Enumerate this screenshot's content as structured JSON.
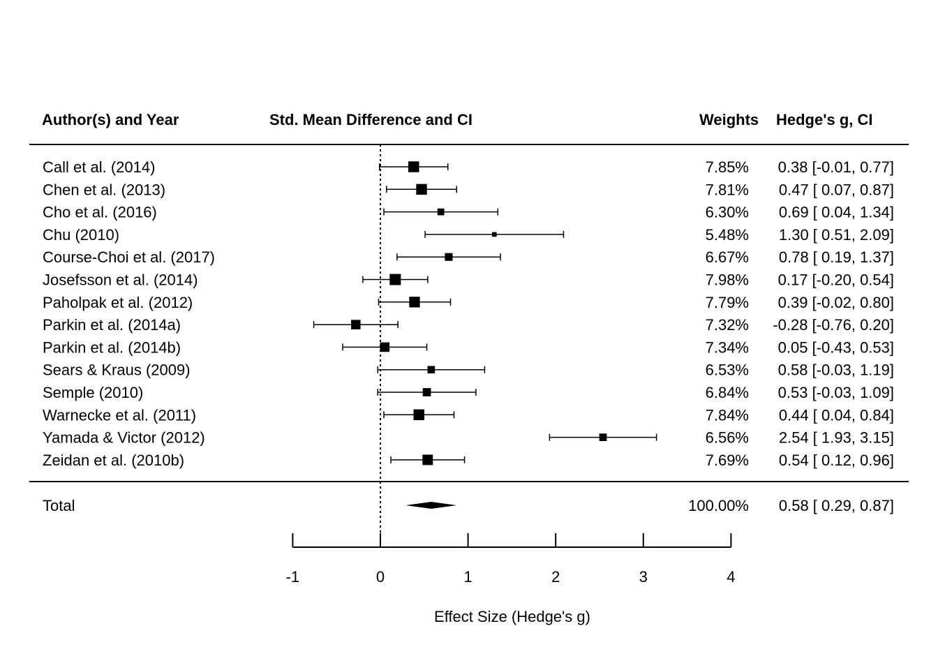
{
  "headers": {
    "study": "Author(s) and Year",
    "plot": "Std. Mean Difference and CI",
    "weights": "Weights",
    "effect": "Hedge's g, CI"
  },
  "chart_data": {
    "type": "forest",
    "xlabel": "Effect Size (Hedge's g)",
    "xlim": [
      -1,
      4
    ],
    "xticks": [
      -1,
      0,
      1,
      2,
      3,
      4
    ],
    "xtick_labels": [
      "-1",
      "0",
      "1",
      "2",
      "3",
      "4"
    ],
    "reference_line": 0,
    "studies": [
      {
        "label": "Call et al. (2014)",
        "est": 0.38,
        "lo": -0.01,
        "hi": 0.77,
        "weight": 7.85,
        "weight_text": "7.85%",
        "ci_text": "0.38 [-0.01, 0.77]"
      },
      {
        "label": "Chen et al. (2013)",
        "est": 0.47,
        "lo": 0.07,
        "hi": 0.87,
        "weight": 7.81,
        "weight_text": "7.81%",
        "ci_text": "0.47 [ 0.07, 0.87]"
      },
      {
        "label": "Cho et al. (2016)",
        "est": 0.69,
        "lo": 0.04,
        "hi": 1.34,
        "weight": 6.3,
        "weight_text": "6.30%",
        "ci_text": "0.69 [ 0.04, 1.34]"
      },
      {
        "label": "Chu (2010)",
        "est": 1.3,
        "lo": 0.51,
        "hi": 2.09,
        "weight": 5.48,
        "weight_text": "5.48%",
        "ci_text": "1.30 [ 0.51, 2.09]"
      },
      {
        "label": "Course-Choi et al. (2017)",
        "est": 0.78,
        "lo": 0.19,
        "hi": 1.37,
        "weight": 6.67,
        "weight_text": "6.67%",
        "ci_text": "0.78 [ 0.19, 1.37]"
      },
      {
        "label": "Josefsson et al. (2014)",
        "est": 0.17,
        "lo": -0.2,
        "hi": 0.54,
        "weight": 7.98,
        "weight_text": "7.98%",
        "ci_text": "0.17 [-0.20, 0.54]"
      },
      {
        "label": "Paholpak et al. (2012)",
        "est": 0.39,
        "lo": -0.02,
        "hi": 0.8,
        "weight": 7.79,
        "weight_text": "7.79%",
        "ci_text": "0.39 [-0.02, 0.80]"
      },
      {
        "label": "Parkin et al. (2014a)",
        "est": -0.28,
        "lo": -0.76,
        "hi": 0.2,
        "weight": 7.32,
        "weight_text": "7.32%",
        "ci_text": "-0.28 [-0.76, 0.20]"
      },
      {
        "label": "Parkin et al. (2014b)",
        "est": 0.05,
        "lo": -0.43,
        "hi": 0.53,
        "weight": 7.34,
        "weight_text": "7.34%",
        "ci_text": "0.05 [-0.43, 0.53]"
      },
      {
        "label": "Sears & Kraus (2009)",
        "est": 0.58,
        "lo": -0.03,
        "hi": 1.19,
        "weight": 6.53,
        "weight_text": "6.53%",
        "ci_text": "0.58 [-0.03, 1.19]"
      },
      {
        "label": "Semple (2010)",
        "est": 0.53,
        "lo": -0.03,
        "hi": 1.09,
        "weight": 6.84,
        "weight_text": "6.84%",
        "ci_text": "0.53 [-0.03, 1.09]"
      },
      {
        "label": "Warnecke et al. (2011)",
        "est": 0.44,
        "lo": 0.04,
        "hi": 0.84,
        "weight": 7.84,
        "weight_text": "7.84%",
        "ci_text": "0.44 [ 0.04, 0.84]"
      },
      {
        "label": "Yamada & Victor (2012)",
        "est": 2.54,
        "lo": 1.93,
        "hi": 3.15,
        "weight": 6.56,
        "weight_text": "6.56%",
        "ci_text": "2.54 [ 1.93, 3.15]"
      },
      {
        "label": "Zeidan et al. (2010b)",
        "est": 0.54,
        "lo": 0.12,
        "hi": 0.96,
        "weight": 7.69,
        "weight_text": "7.69%",
        "ci_text": "0.54 [ 0.12, 0.96]"
      }
    ],
    "total": {
      "label": "Total",
      "est": 0.58,
      "lo": 0.29,
      "hi": 0.87,
      "weight": 100.0,
      "weight_text": "100.00%",
      "ci_text": "0.58 [ 0.29, 0.87]"
    }
  }
}
